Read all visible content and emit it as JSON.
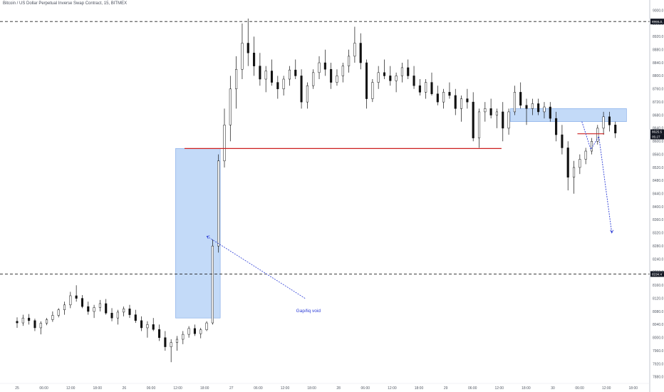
{
  "header": {
    "symbol_title": "Bitcoin / US Dollar Perpetual Inverse Swap Contract, 15, BITMEX"
  },
  "colors": {
    "background": "#ffffff",
    "candle_up": "#ffffff",
    "candle_down": "#111111",
    "candle_outline": "#111111",
    "zone_fill": "#b9d3f7",
    "zone_stroke": "#7ea7e6",
    "support_line": "#cc1f1f",
    "projection_arrow": "#2a3bd6",
    "dashed_level": "#222222"
  },
  "chart_data": {
    "type": "candlestick",
    "title": "Bitcoin / US Dollar Perpetual Inverse Swap Contract, 15, BITMEX",
    "y_ticks": [
      "9000.0",
      "8960.0",
      "8920.0",
      "8880.0",
      "8840.0",
      "8800.0",
      "8760.0",
      "8720.0",
      "8680.0",
      "8640.0",
      "8600.0",
      "8560.0",
      "8520.0",
      "8480.0",
      "8440.0",
      "8400.0",
      "8360.0",
      "8320.0",
      "8280.0",
      "8240.0",
      "8200.0",
      "8160.0",
      "8120.0",
      "8080.0",
      "8040.0",
      "8000.0",
      "7960.0",
      "7920.0",
      "7880.0"
    ],
    "x_ticks": [
      "25",
      "06:00",
      "12:00",
      "18:00",
      "26",
      "06:00",
      "12:00",
      "18:00",
      "27",
      "06:00",
      "12:00",
      "18:00",
      "28",
      "06:00",
      "12:00",
      "18:00",
      "29",
      "06:00",
      "12:00",
      "18:00",
      "30",
      "06:00",
      "12:00",
      "18:00"
    ],
    "ylim": [
      7860,
      9010
    ],
    "levels": [
      {
        "label": "8966.0",
        "value": 8966.0,
        "style": "dashed"
      },
      {
        "label": "8194.4",
        "value": 8194.4,
        "style": "dashed"
      }
    ],
    "current_price": {
      "label": "8625.5",
      "value": 8625.5,
      "countdown": "05:27"
    },
    "support_line_value": 8578,
    "annotations": [
      {
        "text": "Gap/liq void"
      }
    ],
    "zones": [
      {
        "name": "gap-liquidity-void",
        "x_start_hours": 35.5,
        "x_end_hours": 45.5,
        "y_low": 8060,
        "y_high": 8578
      },
      {
        "name": "resistance-supply",
        "x_start_hours": 110.5,
        "x_end_hours": 136.5,
        "y_low": 8660,
        "y_high": 8700
      }
    ],
    "series": [
      {
        "values_ohlc": [
          [
            8050,
            8062,
            8030,
            8045
          ],
          [
            8045,
            8070,
            8036,
            8060
          ],
          [
            8060,
            8072,
            8040,
            8052
          ],
          [
            8052,
            8058,
            8020,
            8030
          ],
          [
            8030,
            8050,
            8010,
            8044
          ],
          [
            8044,
            8060,
            8038,
            8055
          ],
          [
            8055,
            8080,
            8048,
            8068
          ],
          [
            8068,
            8090,
            8062,
            8085
          ],
          [
            8085,
            8110,
            8070,
            8100
          ],
          [
            8100,
            8140,
            8090,
            8128
          ],
          [
            8128,
            8160,
            8110,
            8120
          ],
          [
            8120,
            8130,
            8090,
            8095
          ],
          [
            8095,
            8110,
            8070,
            8080
          ],
          [
            8080,
            8100,
            8060,
            8092
          ],
          [
            8092,
            8115,
            8080,
            8104
          ],
          [
            8104,
            8118,
            8070,
            8075
          ],
          [
            8075,
            8090,
            8050,
            8060
          ],
          [
            8060,
            8085,
            8040,
            8078
          ],
          [
            8078,
            8095,
            8065,
            8088
          ],
          [
            8088,
            8100,
            8060,
            8070
          ],
          [
            8070,
            8085,
            8045,
            8052
          ],
          [
            8052,
            8065,
            8020,
            8030
          ],
          [
            8030,
            8050,
            8000,
            8040
          ],
          [
            8040,
            8060,
            8020,
            8025
          ],
          [
            8025,
            8040,
            7990,
            8000
          ],
          [
            8000,
            8020,
            7960,
            7972
          ],
          [
            7972,
            7995,
            7925,
            7985
          ],
          [
            7985,
            8005,
            7960,
            7995
          ],
          [
            7995,
            8020,
            7980,
            8010
          ],
          [
            8010,
            8035,
            8000,
            8028
          ],
          [
            8028,
            8040,
            8005,
            8012
          ],
          [
            8012,
            8030,
            7998,
            8024
          ],
          [
            8024,
            8050,
            8020,
            8045
          ],
          [
            8045,
            8300,
            8040,
            8280
          ],
          [
            8280,
            8560,
            8260,
            8540
          ],
          [
            8540,
            8700,
            8520,
            8650
          ],
          [
            8650,
            8800,
            8600,
            8760
          ],
          [
            8760,
            8860,
            8700,
            8820
          ],
          [
            8820,
            8960,
            8790,
            8900
          ],
          [
            8900,
            8975,
            8830,
            8870
          ],
          [
            8870,
            8920,
            8800,
            8830
          ],
          [
            8830,
            8870,
            8770,
            8790
          ],
          [
            8790,
            8830,
            8750,
            8815
          ],
          [
            8815,
            8850,
            8770,
            8780
          ],
          [
            8780,
            8800,
            8730,
            8760
          ],
          [
            8760,
            8800,
            8740,
            8790
          ],
          [
            8790,
            8830,
            8770,
            8818
          ],
          [
            8818,
            8850,
            8790,
            8800
          ],
          [
            8800,
            8820,
            8700,
            8720
          ],
          [
            8720,
            8780,
            8700,
            8770
          ],
          [
            8770,
            8820,
            8760,
            8810
          ],
          [
            8810,
            8860,
            8790,
            8840
          ],
          [
            8840,
            8880,
            8800,
            8820
          ],
          [
            8820,
            8840,
            8760,
            8780
          ],
          [
            8780,
            8820,
            8770,
            8800
          ],
          [
            8800,
            8840,
            8780,
            8830
          ],
          [
            8830,
            8880,
            8810,
            8860
          ],
          [
            8860,
            8950,
            8840,
            8900
          ],
          [
            8900,
            8930,
            8820,
            8840
          ],
          [
            8840,
            8850,
            8700,
            8730
          ],
          [
            8730,
            8790,
            8720,
            8780
          ],
          [
            8780,
            8830,
            8760,
            8810
          ],
          [
            8810,
            8850,
            8790,
            8800
          ],
          [
            8800,
            8830,
            8770,
            8785
          ],
          [
            8785,
            8810,
            8750,
            8800
          ],
          [
            8800,
            8840,
            8780,
            8825
          ],
          [
            8825,
            8850,
            8790,
            8800
          ],
          [
            8800,
            8830,
            8760,
            8770
          ],
          [
            8770,
            8790,
            8740,
            8750
          ],
          [
            8750,
            8790,
            8730,
            8780
          ],
          [
            8780,
            8810,
            8740,
            8745
          ],
          [
            8745,
            8770,
            8710,
            8720
          ],
          [
            8720,
            8760,
            8700,
            8750
          ],
          [
            8750,
            8780,
            8730,
            8740
          ],
          [
            8740,
            8760,
            8680,
            8700
          ],
          [
            8700,
            8740,
            8660,
            8730
          ],
          [
            8730,
            8760,
            8700,
            8720
          ],
          [
            8720,
            8750,
            8600,
            8610
          ],
          [
            8610,
            8700,
            8580,
            8690
          ],
          [
            8690,
            8720,
            8660,
            8700
          ],
          [
            8700,
            8730,
            8670,
            8680
          ],
          [
            8680,
            8700,
            8640,
            8690
          ],
          [
            8690,
            8720,
            8600,
            8640
          ],
          [
            8640,
            8700,
            8620,
            8690
          ],
          [
            8690,
            8770,
            8680,
            8750
          ],
          [
            8750,
            8780,
            8700,
            8710
          ],
          [
            8710,
            8730,
            8650,
            8700
          ],
          [
            8700,
            8730,
            8680,
            8715
          ],
          [
            8715,
            8730,
            8680,
            8690
          ],
          [
            8690,
            8720,
            8670,
            8705
          ],
          [
            8705,
            8720,
            8660,
            8670
          ],
          [
            8670,
            8690,
            8600,
            8620
          ],
          [
            8620,
            8650,
            8560,
            8580
          ],
          [
            8580,
            8600,
            8450,
            8490
          ],
          [
            8490,
            8540,
            8440,
            8520
          ],
          [
            8520,
            8560,
            8500,
            8545
          ],
          [
            8545,
            8580,
            8530,
            8570
          ],
          [
            8570,
            8610,
            8560,
            8600
          ],
          [
            8600,
            8650,
            8590,
            8640
          ],
          [
            8640,
            8690,
            8620,
            8675
          ],
          [
            8675,
            8690,
            8630,
            8650
          ],
          [
            8650,
            8660,
            8610,
            8625
          ]
        ]
      }
    ]
  },
  "right_axis_boxes": [
    {
      "label": "8966.0"
    },
    {
      "label": "8625.5"
    },
    {
      "label": "05:27"
    },
    {
      "label": "8194.4"
    }
  ]
}
